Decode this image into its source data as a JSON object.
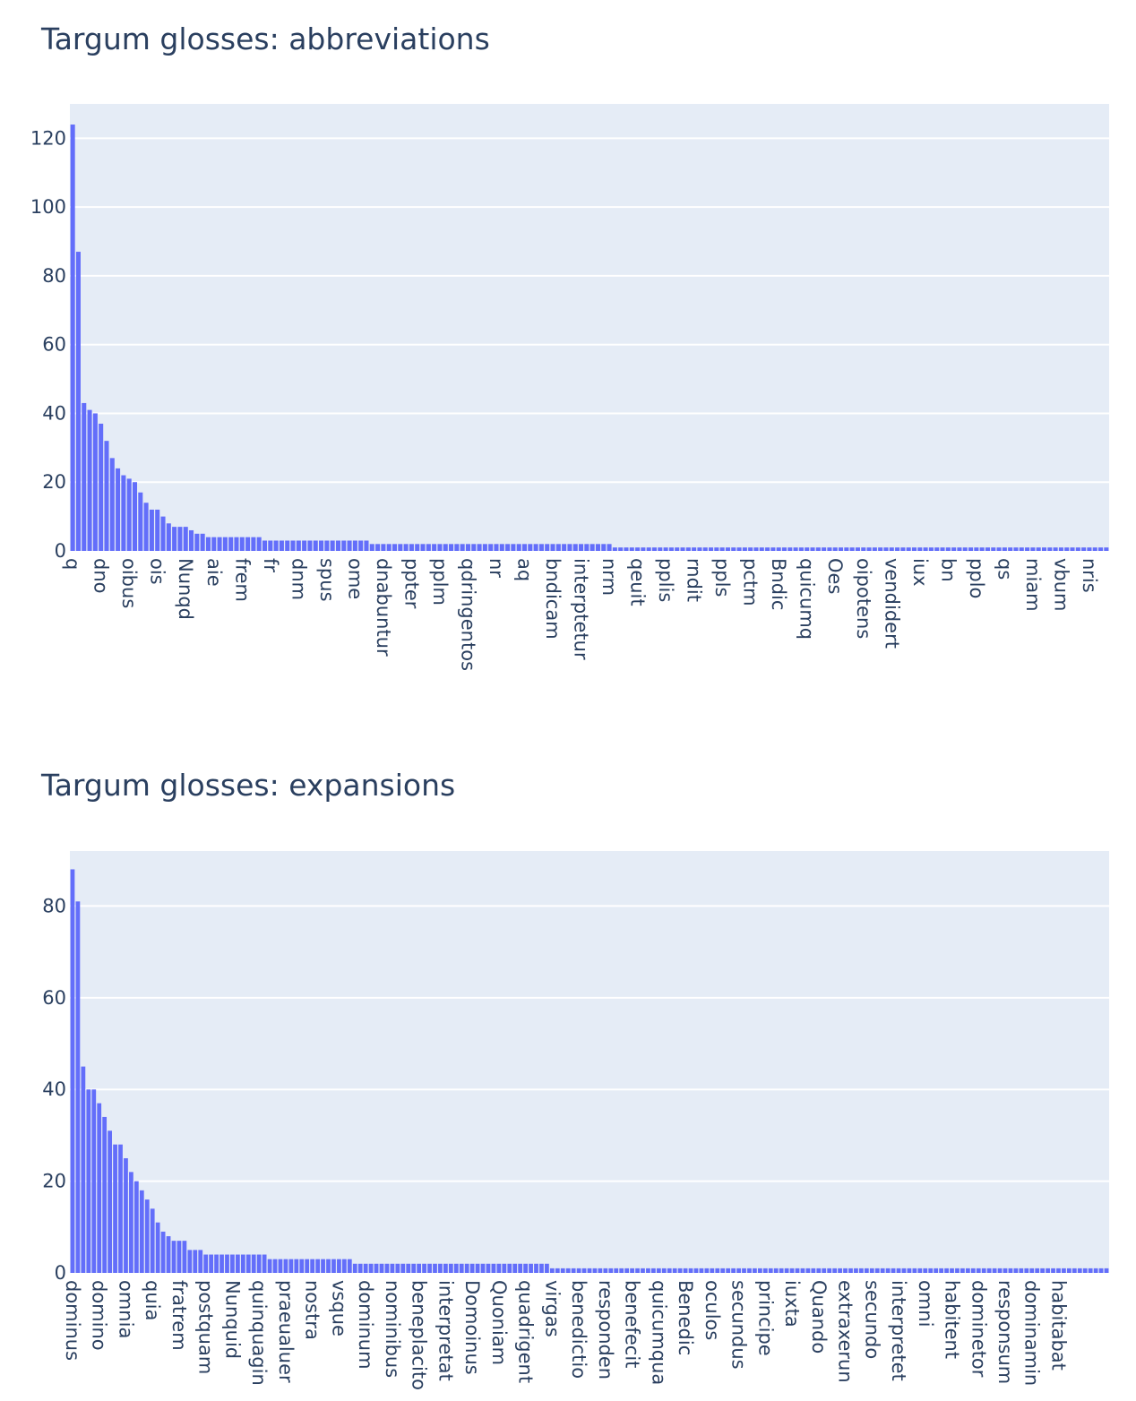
{
  "chart_data": [
    {
      "type": "bar",
      "title": "Targum glosses: abbreviations",
      "xlabel": "",
      "ylabel": "",
      "ylim": [
        0,
        130
      ],
      "yticks": [
        0,
        20,
        40,
        60,
        80,
        100,
        120
      ],
      "grid": true,
      "bar_color": "#636efa",
      "plot_bg": "#e5ecf6",
      "n_categories": 184,
      "tick_labels": [
        "q",
        "dno",
        "oibus",
        "ois",
        "Nunqd",
        "aie",
        "frem",
        "fr",
        "dnm",
        "spus",
        "ome",
        "dnabuntur",
        "ppter",
        "pplm",
        "qdringentos",
        "nr",
        "aq",
        "bndicam",
        "interptetur",
        "nrm",
        "qeuit",
        "pplis",
        "rndit",
        "ppls",
        "pctm",
        "Bndic",
        "quicumq",
        "Oes",
        "oipotens",
        "vendidert",
        "iux",
        "bn",
        "pplo",
        "qs",
        "miam",
        "vbum",
        "nris"
      ],
      "tick_every": 5,
      "values": [
        124,
        87,
        43,
        41,
        40,
        37,
        32,
        27,
        24,
        22,
        21,
        20,
        17,
        14,
        12,
        12,
        10,
        8,
        7,
        7,
        7,
        6,
        5,
        5,
        4,
        4,
        4,
        4,
        4,
        4,
        4,
        4,
        4,
        4,
        3,
        3,
        3,
        3,
        3,
        3,
        3,
        3,
        3,
        3,
        3,
        3,
        3,
        3,
        3,
        3,
        3,
        3,
        3,
        2,
        2,
        2,
        2,
        2,
        2,
        2,
        2,
        2,
        2,
        2,
        2,
        2,
        2,
        2,
        2,
        2,
        2,
        2,
        2,
        2,
        2,
        2,
        2,
        2,
        2,
        2,
        2,
        2,
        2,
        2,
        2,
        2,
        2,
        2,
        2,
        2,
        2,
        2,
        2,
        2,
        2,
        2,
        1,
        1,
        1,
        1,
        1,
        1,
        1,
        1,
        1,
        1,
        1,
        1,
        1,
        1,
        1,
        1,
        1,
        1,
        1,
        1,
        1,
        1,
        1,
        1,
        1,
        1,
        1,
        1,
        1,
        1,
        1,
        1,
        1,
        1,
        1,
        1,
        1,
        1,
        1,
        1,
        1,
        1,
        1,
        1,
        1,
        1,
        1,
        1,
        1,
        1,
        1,
        1,
        1,
        1,
        1,
        1,
        1,
        1,
        1,
        1,
        1,
        1,
        1,
        1,
        1,
        1,
        1,
        1,
        1,
        1,
        1,
        1,
        1,
        1,
        1,
        1,
        1,
        1,
        1,
        1,
        1,
        1,
        1,
        1,
        1,
        1,
        1,
        1
      ]
    },
    {
      "type": "bar",
      "title": "Targum glosses: expansions",
      "xlabel": "",
      "ylabel": "",
      "ylim": [
        0,
        92
      ],
      "yticks": [
        0,
        20,
        40,
        60,
        80
      ],
      "grid": true,
      "bar_color": "#636efa",
      "plot_bg": "#e5ecf6",
      "n_categories": 195,
      "tick_labels": [
        "dominus",
        "domino",
        "omnia",
        "quia",
        "fratrem",
        "postquam",
        "Nunquid",
        "quinquagin",
        "praeualuer",
        "nostra",
        "vsque",
        "dominum",
        "nominibus",
        "beneplacito",
        "interpretat",
        "Domoinus",
        "Quoniam",
        "quadrigent",
        "virgas",
        "benedictio",
        "responden",
        "benefecit",
        "quicumqua",
        "Benedic",
        "oculos",
        "secundus",
        "principe",
        "iuxta",
        "Quando",
        "extraxerun",
        "secundo",
        "interpretet",
        "omni",
        "habitent",
        "dominetor",
        "responsum",
        "dominamin",
        "habitabat"
      ],
      "tick_every": 5,
      "values": [
        88,
        81,
        45,
        40,
        40,
        37,
        34,
        31,
        28,
        28,
        25,
        22,
        20,
        18,
        16,
        14,
        11,
        9,
        8,
        7,
        7,
        7,
        5,
        5,
        5,
        4,
        4,
        4,
        4,
        4,
        4,
        4,
        4,
        4,
        4,
        4,
        4,
        3,
        3,
        3,
        3,
        3,
        3,
        3,
        3,
        3,
        3,
        3,
        3,
        3,
        3,
        3,
        3,
        2,
        2,
        2,
        2,
        2,
        2,
        2,
        2,
        2,
        2,
        2,
        2,
        2,
        2,
        2,
        2,
        2,
        2,
        2,
        2,
        2,
        2,
        2,
        2,
        2,
        2,
        2,
        2,
        2,
        2,
        2,
        2,
        2,
        2,
        2,
        2,
        2,
        1,
        1,
        1,
        1,
        1,
        1,
        1,
        1,
        1,
        1,
        1,
        1,
        1,
        1,
        1,
        1,
        1,
        1,
        1,
        1,
        1,
        1,
        1,
        1,
        1,
        1,
        1,
        1,
        1,
        1,
        1,
        1,
        1,
        1,
        1,
        1,
        1,
        1,
        1,
        1,
        1,
        1,
        1,
        1,
        1,
        1,
        1,
        1,
        1,
        1,
        1,
        1,
        1,
        1,
        1,
        1,
        1,
        1,
        1,
        1,
        1,
        1,
        1,
        1,
        1,
        1,
        1,
        1,
        1,
        1,
        1,
        1,
        1,
        1,
        1,
        1,
        1,
        1,
        1,
        1,
        1,
        1,
        1,
        1,
        1,
        1,
        1,
        1,
        1,
        1,
        1,
        1,
        1,
        1,
        1,
        1,
        1,
        1,
        1,
        1,
        1,
        1,
        1,
        1,
        1
      ]
    }
  ]
}
